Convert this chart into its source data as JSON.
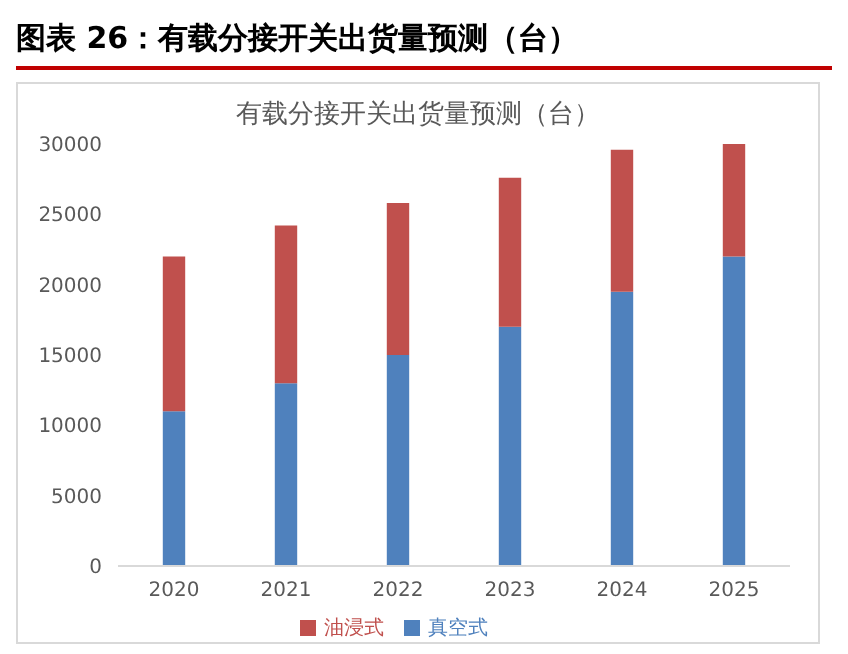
{
  "chart_data": {
    "type": "bar",
    "title": "图表 26：有载分接开关出货量预测（台）",
    "subtitle": "有载分接开关出货量预测（台）",
    "categories": [
      "2020",
      "2021",
      "2022",
      "2023",
      "2024",
      "2025"
    ],
    "stacked": true,
    "series": [
      {
        "name": "真空式",
        "color": "#4f81bd",
        "values": [
          11000,
          13000,
          15000,
          17000,
          19500,
          22000
        ]
      },
      {
        "name": "油浸式",
        "color": "#c0504d",
        "values": [
          11000,
          11200,
          10800,
          10600,
          10100,
          8000
        ]
      }
    ],
    "ylim": [
      0,
      30000
    ],
    "yticks": [
      0,
      5000,
      10000,
      15000,
      20000,
      25000,
      30000
    ],
    "grid": false,
    "legend": "bottom"
  }
}
